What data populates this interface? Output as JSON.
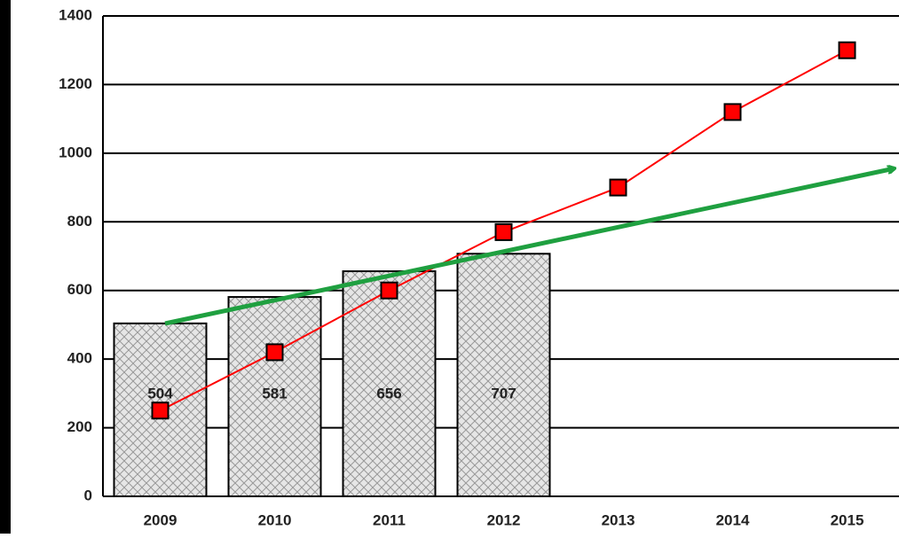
{
  "chart_data": {
    "type": "bar",
    "categories": [
      "2009",
      "2010",
      "2011",
      "2012",
      "2013",
      "2014",
      "2015"
    ],
    "series": [
      {
        "type": "bar",
        "color": "#d9d9d9",
        "values": [
          504,
          581,
          656,
          707,
          null,
          null,
          null
        ]
      },
      {
        "type": "line",
        "color": "#ff0000",
        "values": [
          250,
          420,
          600,
          770,
          900,
          1120,
          1300
        ]
      }
    ],
    "ylim": [
      0,
      1400
    ],
    "yticks": [
      0,
      200,
      400,
      600,
      800,
      1000,
      1200,
      1400
    ],
    "grid": true
  }
}
